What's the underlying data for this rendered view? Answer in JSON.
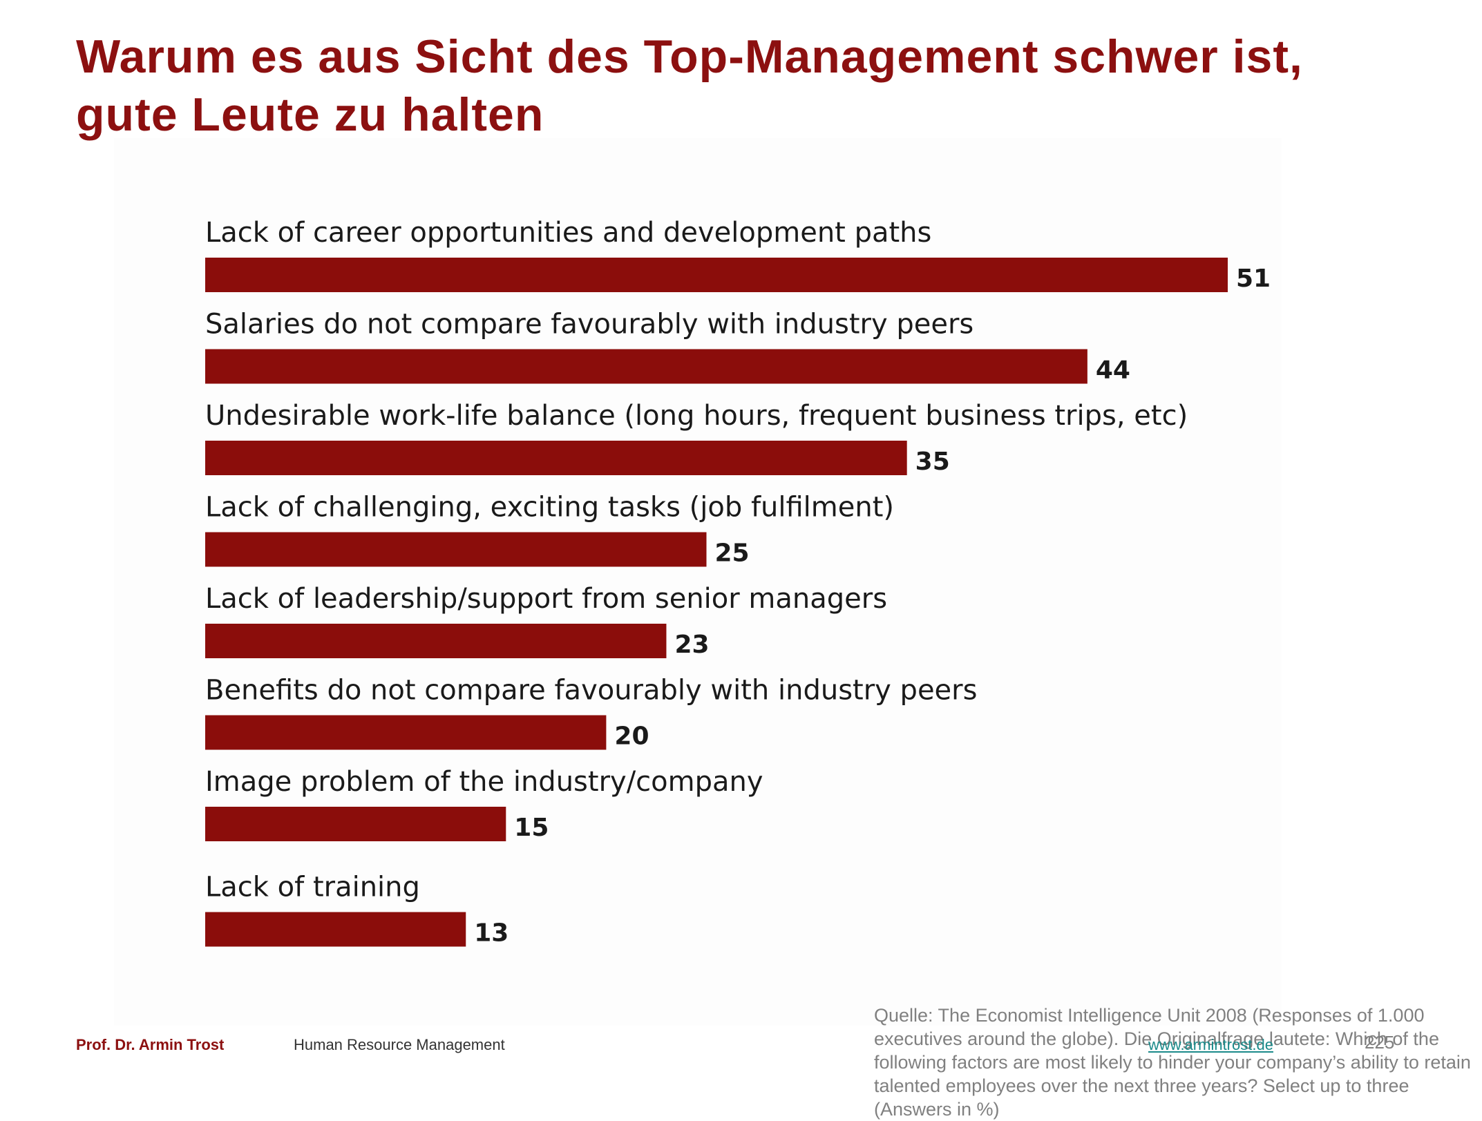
{
  "slide": {
    "title": "Warum es aus Sicht des Top-Management schwer ist, gute Leute zu halten"
  },
  "chart_data": {
    "type": "bar",
    "orientation": "horizontal",
    "bar_color": "#8b0d0b",
    "categories": [
      "Lack of career opportunities and development paths",
      "Salaries do not compare favourably with industry peers",
      "Undesirable work-life balance (long hours, frequent business trips, etc)",
      "Lack of challenging, exciting tasks (job fulfilment)",
      "Lack of leadership/support from senior managers",
      "Benefits do not compare favourably with industry peers",
      "Image problem of the industry/company",
      "Lack of training"
    ],
    "values": [
      51,
      44,
      35,
      25,
      23,
      20,
      15,
      13
    ],
    "data_labels": [
      "51",
      "44",
      "35",
      "25",
      "23",
      "20",
      "15",
      "13"
    ],
    "xlim": [
      0,
      51
    ],
    "grid": false,
    "legend": "none"
  },
  "source": {
    "text": "Quelle: The Economist Intelligence Unit 2008 (Responses of 1.000 executives around the globe). Die Originalfrage lautete: Which of the following factors are most likely to hinder your company’s ability to retain talented employees over the next three years? Select up to three (Answers in %)"
  },
  "footer": {
    "author": "Prof. Dr. Armin Trost",
    "course": "Human Resource Management",
    "website": "www.armintrost.de",
    "page_number": "225"
  }
}
